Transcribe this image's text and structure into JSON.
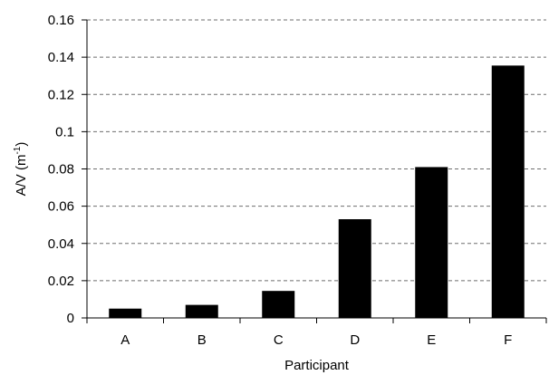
{
  "chart_data": {
    "type": "bar",
    "categories": [
      "A",
      "B",
      "C",
      "D",
      "E",
      "F"
    ],
    "values": [
      0.005,
      0.007,
      0.0145,
      0.053,
      0.081,
      0.1355
    ],
    "title": "",
    "xlabel": "Participant",
    "ylabel": "A/V (m",
    "ylabel_superscript": "-1",
    "ylabel_suffix": ")",
    "ylim": [
      0,
      0.16
    ],
    "yticks": [
      0,
      0.02,
      0.04,
      0.06,
      0.08,
      0.1,
      0.12,
      0.14,
      0.16
    ],
    "ytick_labels": [
      "0",
      "0.02",
      "0.04",
      "0.06",
      "0.08",
      "0.1",
      "0.12",
      "0.14",
      "0.16"
    ],
    "grid": "horizontal dashed",
    "bar_color": "#000000"
  }
}
